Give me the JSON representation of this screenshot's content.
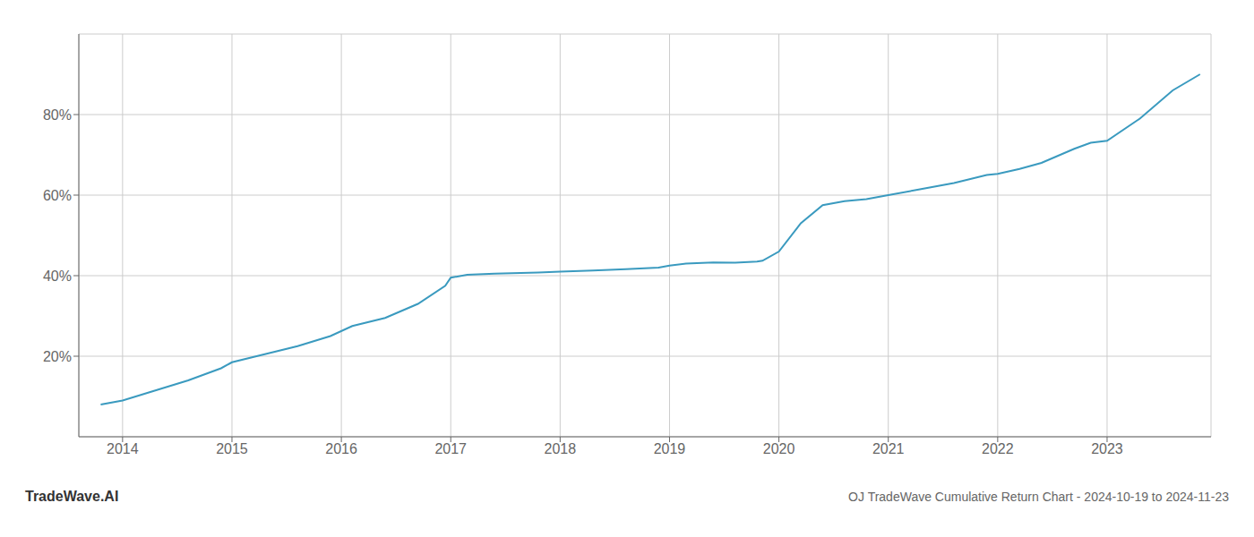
{
  "chart_data": {
    "type": "line",
    "title": "OJ TradeWave Cumulative Return Chart - 2024-10-19 to 2024-11-23",
    "annotations": [
      "TradeWave.AI"
    ],
    "x": [
      2013.8,
      2014.0,
      2014.3,
      2014.6,
      2014.9,
      2015.0,
      2015.3,
      2015.6,
      2015.9,
      2016.1,
      2016.4,
      2016.7,
      2016.95,
      2017.0,
      2017.15,
      2017.4,
      2017.8,
      2018.0,
      2018.3,
      2018.6,
      2018.9,
      2019.0,
      2019.15,
      2019.4,
      2019.6,
      2019.8,
      2019.85,
      2020.0,
      2020.2,
      2020.4,
      2020.6,
      2020.8,
      2021.0,
      2021.3,
      2021.6,
      2021.9,
      2022.0,
      2022.2,
      2022.4,
      2022.7,
      2022.85,
      2023.0,
      2023.3,
      2023.6,
      2023.85
    ],
    "values": [
      8.0,
      9.0,
      11.5,
      14.0,
      17.0,
      18.5,
      20.5,
      22.5,
      25.0,
      27.5,
      29.5,
      33.0,
      37.5,
      39.5,
      40.2,
      40.5,
      40.8,
      41.0,
      41.3,
      41.6,
      42.0,
      42.5,
      43.0,
      43.3,
      43.2,
      43.5,
      43.7,
      46.0,
      53.0,
      57.5,
      58.5,
      59.0,
      60.0,
      61.5,
      63.0,
      65.0,
      65.3,
      66.5,
      68.0,
      71.5,
      73.0,
      73.5,
      79.0,
      86.0,
      90.0
    ],
    "color": "#3a9abf",
    "xlim": [
      2013.6,
      2023.95
    ],
    "ylim": [
      0,
      100
    ],
    "xticks": [
      2014,
      2015,
      2016,
      2017,
      2018,
      2019,
      2020,
      2021,
      2022,
      2023
    ],
    "yticks": [
      {
        "value": 20,
        "label": "20%"
      },
      {
        "value": 40,
        "label": "40%"
      },
      {
        "value": 60,
        "label": "60%"
      },
      {
        "value": 80,
        "label": "80%"
      }
    ],
    "grid": true
  }
}
